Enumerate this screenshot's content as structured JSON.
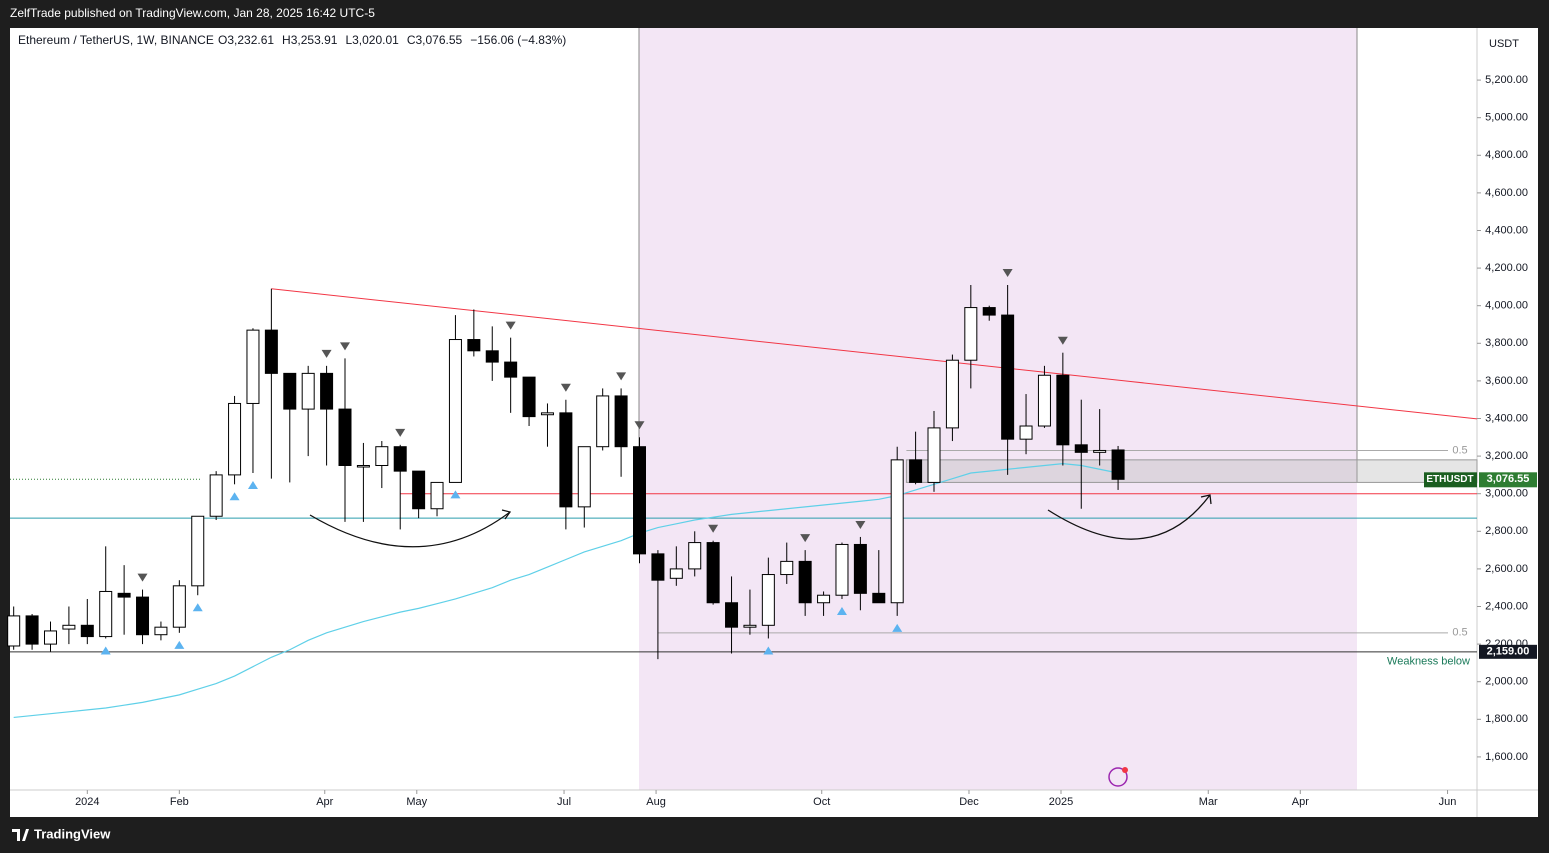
{
  "chart_data": {
    "type": "candlestick",
    "header": "ZelfTrade published on TradingView.com, Jan 28, 2025 16:42 UTC-5",
    "symbol": "Ethereum / TetherUS, 1W, BINANCE",
    "ohlc_text": [
      "O3,232.61",
      "H3,253.91",
      "L3,020.01",
      "C3,076.55",
      "−156.06 (−4.83%)"
    ],
    "currency": "USDT",
    "footer": "TradingView",
    "up_color": "#ffffff",
    "down_color": "#000000",
    "open": [
      2190,
      2350,
      2200,
      2280,
      2300,
      2240,
      2470,
      2450,
      2250,
      2290,
      2510,
      2880,
      3100,
      3480,
      3870,
      3640,
      3450,
      3640,
      3450,
      3150,
      3150,
      3250,
      3120,
      2920,
      3060,
      3820,
      3760,
      3700,
      3620,
      3420,
      3430,
      2930,
      3250,
      3520,
      3250,
      2680,
      2550,
      2600,
      2740,
      2420,
      2290,
      2300,
      2570,
      2640,
      2420,
      2460,
      2730,
      2470,
      2420,
      3180,
      3060,
      3350,
      3710,
      3990,
      3950,
      3290,
      3360,
      3630,
      3260,
      3220,
      3232.61
    ],
    "high": [
      2400,
      2360,
      2320,
      2400,
      2440,
      2720,
      2620,
      2490,
      2320,
      2540,
      2880,
      3120,
      3520,
      3880,
      4090,
      3640,
      3680,
      3680,
      3720,
      3270,
      3280,
      3260,
      3120,
      3060,
      3950,
      3980,
      3890,
      3830,
      3620,
      3480,
      3500,
      3250,
      3560,
      3560,
      3300,
      2700,
      2720,
      2800,
      2750,
      2560,
      2490,
      2660,
      2740,
      2700,
      2480,
      2740,
      2770,
      2700,
      3250,
      3330,
      3440,
      3740,
      4110,
      4000,
      4110,
      3530,
      3680,
      3750,
      3500,
      3450,
      3253.91
    ],
    "low": [
      2170,
      2170,
      2160,
      2200,
      2200,
      2230,
      2250,
      2200,
      2220,
      2260,
      2460,
      2860,
      3050,
      3110,
      3080,
      3060,
      3200,
      3150,
      2850,
      2850,
      3030,
      2810,
      2870,
      2880,
      3060,
      3730,
      3600,
      3430,
      3360,
      3250,
      2810,
      2820,
      3230,
      3090,
      2630,
      2120,
      2510,
      2560,
      2410,
      2150,
      2250,
      2230,
      2520,
      2350,
      2350,
      2440,
      2380,
      2430,
      2350,
      3050,
      3010,
      3280,
      3560,
      3920,
      3100,
      3210,
      3350,
      3150,
      2920,
      3150,
      3020.01
    ],
    "close": [
      2350,
      2200,
      2270,
      2300,
      2240,
      2480,
      2450,
      2250,
      2290,
      2510,
      2880,
      3100,
      3480,
      3870,
      3640,
      3450,
      3640,
      3450,
      3150,
      3150,
      3250,
      3120,
      2920,
      3060,
      3820,
      3760,
      3700,
      3620,
      3410,
      3430,
      2930,
      3250,
      3520,
      3250,
      2680,
      2540,
      2600,
      2740,
      2420,
      2290,
      2300,
      2570,
      2640,
      2420,
      2460,
      2730,
      2470,
      2420,
      3180,
      3060,
      3350,
      3710,
      3990,
      3950,
      3290,
      3360,
      3630,
      3260,
      3220,
      3230,
      3076.55
    ],
    "ma": {
      "color": "#5fd0e8",
      "values": [
        1810,
        1820,
        1830,
        1840,
        1850,
        1860,
        1875,
        1890,
        1910,
        1930,
        1960,
        1990,
        2030,
        2080,
        2130,
        2170,
        2220,
        2260,
        2290,
        2320,
        2345,
        2370,
        2390,
        2415,
        2440,
        2470,
        2500,
        2540,
        2570,
        2610,
        2650,
        2690,
        2720,
        2750,
        2790,
        2820,
        2840,
        2860,
        2875,
        2890,
        2900,
        2910,
        2920,
        2930,
        2940,
        2950,
        2960,
        2970,
        2990,
        3020,
        3050,
        3080,
        3110,
        3120,
        3130,
        3140,
        3150,
        3160,
        3150,
        3130,
        3110
      ]
    },
    "last_price": {
      "value": 3076.55,
      "label": "3,076.55"
    },
    "last_tag": "ETHUSDT",
    "support": {
      "value": 2159,
      "label": "2,159.00",
      "note": "Weakness below"
    },
    "lines": [
      {
        "value": 3000,
        "color": "#f23645"
      },
      {
        "value": 2870,
        "color": "#2a9dae"
      }
    ],
    "fib_levels": [
      {
        "value": 3230,
        "label": "0.5"
      },
      {
        "value": 2260,
        "label": "0.5"
      }
    ],
    "zone": [
      3060,
      3180
    ],
    "xlim": [
      -0.2,
      79.5
    ],
    "xticks": [
      {
        "value": 4.0,
        "label": "2024"
      },
      {
        "value": 9.0,
        "label": "Feb"
      },
      {
        "value": 16.9,
        "label": "Apr"
      },
      {
        "value": 21.9,
        "label": "May"
      },
      {
        "value": 29.9,
        "label": "Jul"
      },
      {
        "value": 34.9,
        "label": "Aug"
      },
      {
        "value": 43.9,
        "label": "Oct"
      },
      {
        "value": 51.9,
        "label": "Dec"
      },
      {
        "value": 56.9,
        "label": "2025"
      },
      {
        "value": 64.9,
        "label": "Mar"
      },
      {
        "value": 69.9,
        "label": "Apr"
      },
      {
        "value": 77.9,
        "label": "Jun"
      }
    ],
    "ylim": [
      1424,
      5477
    ],
    "yticks": [
      {
        "value": 1600,
        "label": "1,600.00"
      },
      {
        "value": 1800,
        "label": "1,800.00"
      },
      {
        "value": 2000,
        "label": "2,000.00"
      },
      {
        "value": 2200,
        "label": "2,200.00"
      },
      {
        "value": 2400,
        "label": "2,400.00"
      },
      {
        "value": 2600,
        "label": "2,600.00"
      },
      {
        "value": 2800,
        "label": "2,800.00"
      },
      {
        "value": 3000,
        "label": "3,000.00"
      },
      {
        "value": 3200,
        "label": "3,200.00"
      },
      {
        "value": 3400,
        "label": "3,400.00"
      },
      {
        "value": 3600,
        "label": "3,600.00"
      },
      {
        "value": 3800,
        "label": "3,800.00"
      },
      {
        "value": 4000,
        "label": "4,000.00"
      },
      {
        "value": 4200,
        "label": "4,200.00"
      },
      {
        "value": 4400,
        "label": "4,400.00"
      },
      {
        "value": 4600,
        "label": "4,600.00"
      },
      {
        "value": 4800,
        "label": "4,800.00"
      },
      {
        "value": 5000,
        "label": "5,000.00"
      },
      {
        "value": 5200,
        "label": "5,200.00"
      }
    ]
  }
}
